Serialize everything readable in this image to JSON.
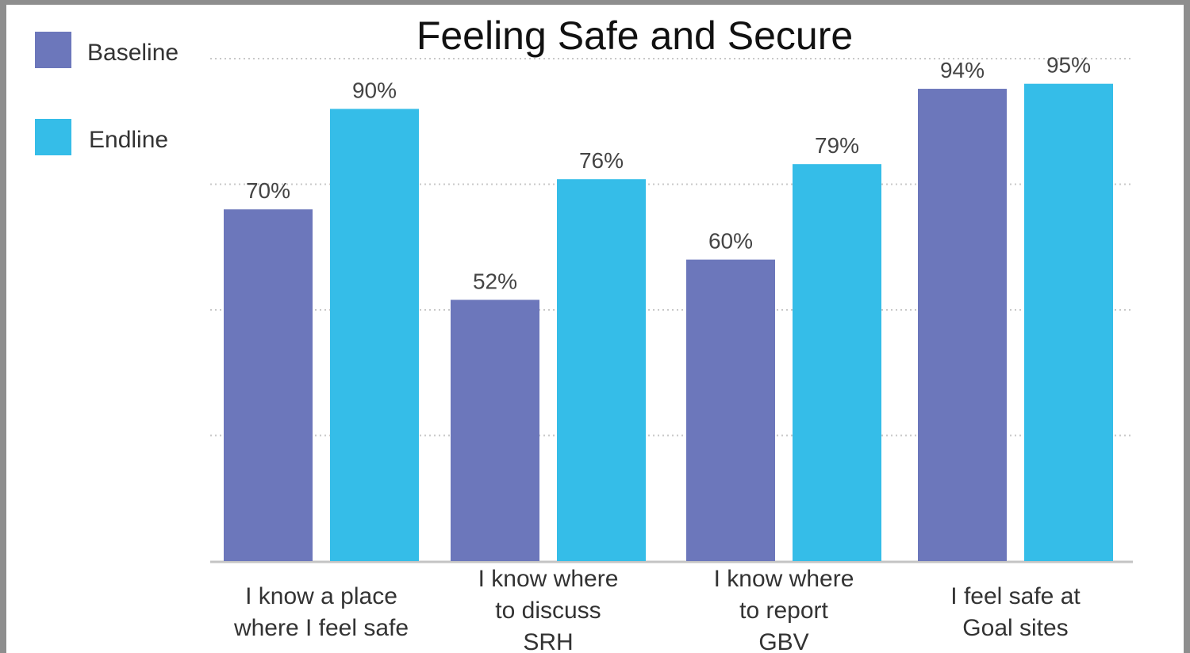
{
  "chart_data": {
    "type": "bar",
    "title": "Feeling Safe and Secure",
    "categories": [
      [
        "I know a place",
        "where I feel safe"
      ],
      [
        "I know where",
        "to discuss",
        "SRH"
      ],
      [
        "I know where",
        "to report",
        "GBV"
      ],
      [
        "I feel safe at",
        "Goal sites"
      ]
    ],
    "series": [
      {
        "name": "Baseline",
        "values": [
          70,
          52,
          60,
          94
        ],
        "labels": [
          "70%",
          "52%",
          "60%",
          "94%"
        ],
        "color": "#6c77bb"
      },
      {
        "name": "Endline",
        "values": [
          90,
          76,
          79,
          95
        ],
        "labels": [
          "90%",
          "76%",
          "79%",
          "95%"
        ],
        "color": "#35bde8"
      }
    ],
    "ylim": [
      0,
      100
    ],
    "grid": true,
    "gridline_values": [
      25,
      50,
      75,
      100
    ],
    "legend_position": "top-left",
    "ylabel": "",
    "xlabel": ""
  }
}
